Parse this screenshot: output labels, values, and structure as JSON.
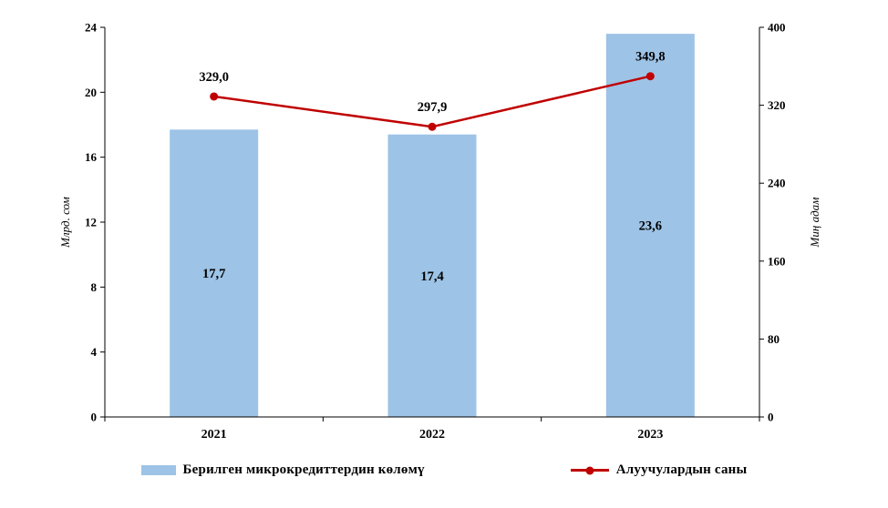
{
  "chart_data": {
    "type": "bar",
    "subtype": "bar-line-combo",
    "categories": [
      "2021",
      "2022",
      "2023"
    ],
    "series": [
      {
        "name": "Берилген микрокредиттердин  көлөмү",
        "type": "bar",
        "axis": "left",
        "values": [
          17.7,
          17.4,
          23.6
        ],
        "labels": [
          "17,7",
          "17,4",
          "23,6"
        ],
        "color": "#9DC3E6"
      },
      {
        "name": "Алуучулардын саны",
        "type": "line",
        "axis": "right",
        "values": [
          329.0,
          297.9,
          349.8
        ],
        "labels": [
          "329,0",
          "297,9",
          "349,8"
        ],
        "color": "#C00000"
      }
    ],
    "left_axis": {
      "label": "Млрд. сом",
      "min": 0,
      "max": 24,
      "ticks": [
        0,
        4,
        8,
        12,
        16,
        20,
        24
      ]
    },
    "right_axis": {
      "label": "Миң адам",
      "min": 0,
      "max": 400,
      "ticks": [
        0,
        80,
        160,
        240,
        320,
        400
      ]
    },
    "grid": false,
    "legend_position": "bottom"
  },
  "legend": {
    "bar_label": "Берилген микрокредиттердин  көлөмү",
    "line_label": "Алуучулардын саны"
  }
}
